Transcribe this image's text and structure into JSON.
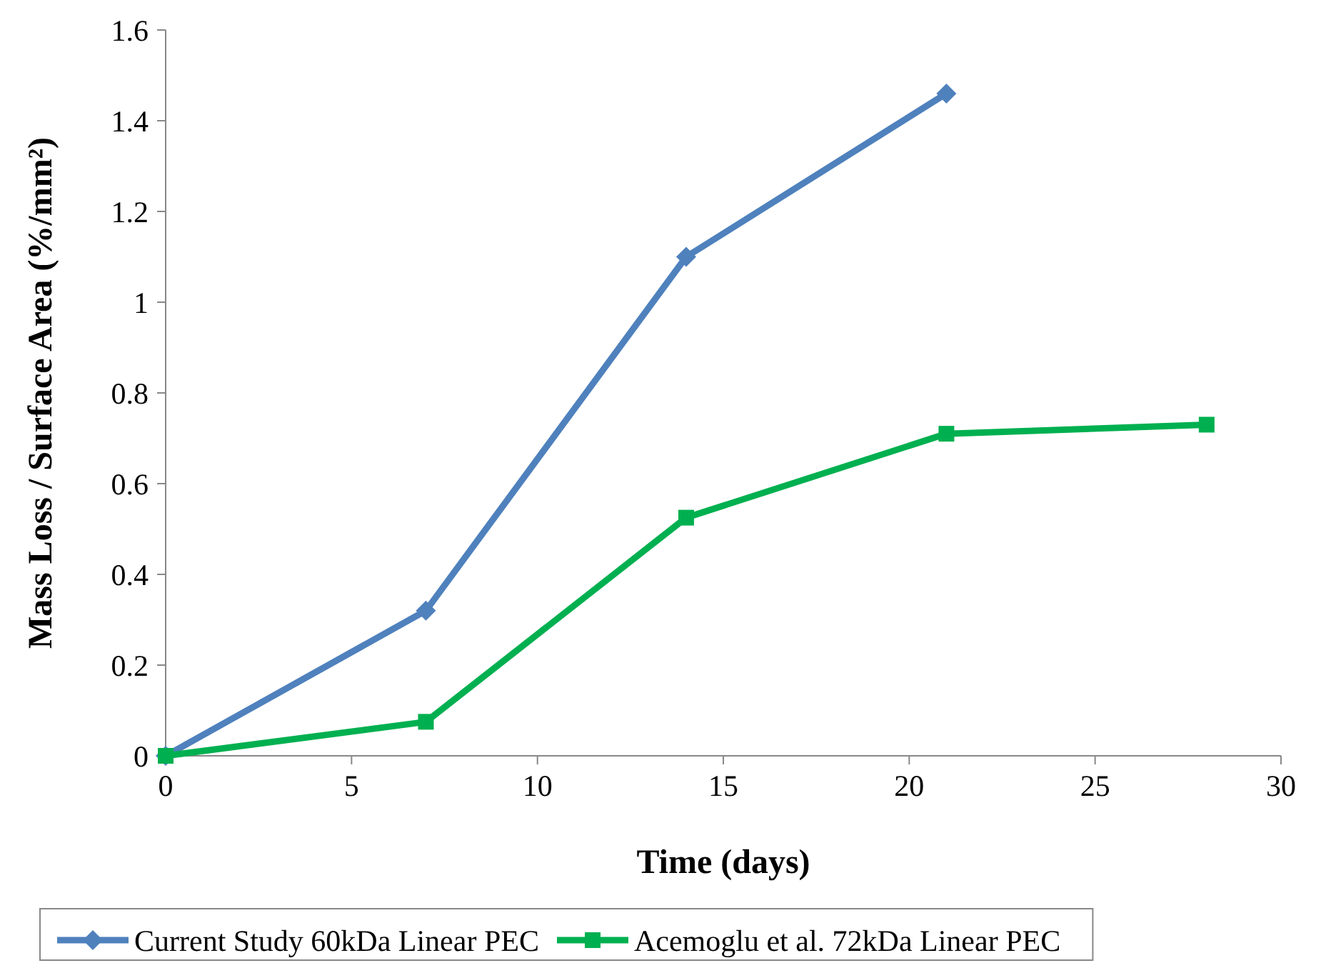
{
  "chart_data": {
    "type": "line",
    "xlabel": "Time (days)",
    "ylabel": "Mass Loss / Surface Area (%/mm²)",
    "xlim": [
      0,
      30
    ],
    "xticks": [
      0,
      5,
      10,
      15,
      20,
      25,
      30
    ],
    "ylim": [
      0,
      1.6
    ],
    "yticks": [
      0,
      {
        "value": 0.2,
        "label": "0.2"
      },
      {
        "value": 0.4,
        "label": "0.4"
      },
      {
        "value": 0.6,
        "label": "0.6"
      },
      {
        "value": 0.8,
        "label": "0.8"
      },
      1,
      {
        "value": 1.2,
        "label": "1.2"
      },
      {
        "value": 1.4,
        "label": "1.4"
      },
      {
        "value": 1.6,
        "label": "1.6"
      }
    ],
    "legend": "bottom",
    "grid": false,
    "series": [
      {
        "name": "Current Study 60kDa Linear PEC",
        "color": "#4f81bd",
        "marker": "diamond",
        "x": [
          0,
          7,
          14,
          21
        ],
        "values": [
          0,
          0.32,
          1.1,
          1.46
        ]
      },
      {
        "name": "Acemoglu et al. 72kDa Linear PEC",
        "color": "#00b050",
        "marker": "square",
        "x": [
          0,
          7,
          14,
          21,
          28
        ],
        "values": [
          0,
          0.075,
          0.525,
          0.71,
          0.73
        ]
      }
    ]
  }
}
